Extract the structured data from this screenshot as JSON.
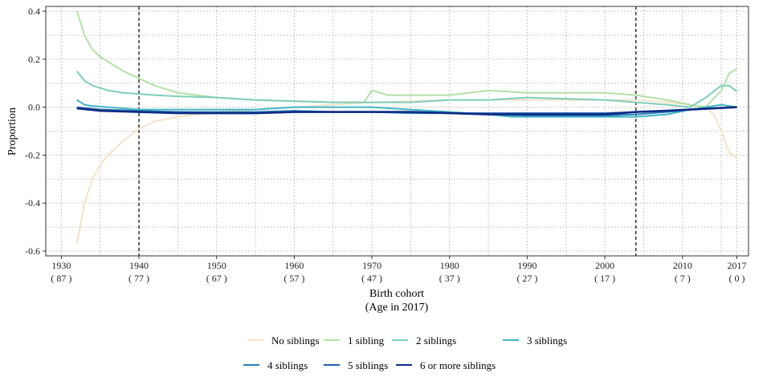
{
  "chart_data": {
    "type": "line",
    "xlabel": "Birth cohort",
    "xlabel2": "(Age in 2017)",
    "ylabel": "Proportion",
    "xlim": [
      1928,
      2018.5
    ],
    "ylim": [
      -0.62,
      0.42
    ],
    "x_ticks": [
      {
        "year": 1930,
        "label": "1930",
        "age": "( 87 )"
      },
      {
        "year": 1940,
        "label": "1940",
        "age": "( 77 )"
      },
      {
        "year": 1950,
        "label": "1950",
        "age": "( 67 )"
      },
      {
        "year": 1960,
        "label": "1960",
        "age": "( 57 )"
      },
      {
        "year": 1970,
        "label": "1970",
        "age": "( 47 )"
      },
      {
        "year": 1980,
        "label": "1980",
        "age": "( 37 )"
      },
      {
        "year": 1990,
        "label": "1990",
        "age": "( 27 )"
      },
      {
        "year": 2000,
        "label": "2000",
        "age": "( 17 )"
      },
      {
        "year": 2010,
        "label": "2010",
        "age": "( 7 )"
      },
      {
        "year": 2017,
        "label": "2017",
        "age": "( 0 )"
      }
    ],
    "y_ticks": [
      -0.6,
      -0.4,
      -0.2,
      0.0,
      0.2,
      0.4
    ],
    "y_tick_labels": [
      "-0.6",
      "-0.4",
      "-0.2",
      "0.0",
      "0.2",
      "0.4"
    ],
    "vlines": [
      1940,
      2004
    ],
    "grid": true,
    "legend_position": "bottom",
    "series": [
      {
        "name": "No siblings",
        "color": "#f3e3c8",
        "x": [
          1932,
          1933,
          1934,
          1935,
          1936,
          1938,
          1940,
          1942,
          1945,
          1950,
          1955,
          1960,
          1965,
          1970,
          1975,
          1980,
          1985,
          1990,
          1995,
          2000,
          2004,
          2008,
          2011,
          2013,
          2014,
          2015,
          2016,
          2017
        ],
        "y": [
          -0.57,
          -0.4,
          -0.3,
          -0.24,
          -0.2,
          -0.14,
          -0.09,
          -0.06,
          -0.04,
          -0.02,
          -0.01,
          0.0,
          0.01,
          0.02,
          0.025,
          0.03,
          0.03,
          0.03,
          0.03,
          0.03,
          0.03,
          0.02,
          0.01,
          0.0,
          -0.03,
          -0.1,
          -0.19,
          -0.21
        ]
      },
      {
        "name": "1 sibling",
        "color": "#b3e0a6",
        "x": [
          1932,
          1933,
          1934,
          1935,
          1936,
          1938,
          1940,
          1942,
          1945,
          1950,
          1955,
          1960,
          1965,
          1969,
          1970,
          1972,
          1975,
          1980,
          1985,
          1990,
          1995,
          2000,
          2004,
          2008,
          2011,
          2013,
          2015,
          2016,
          2017
        ],
        "y": [
          0.4,
          0.3,
          0.24,
          0.21,
          0.19,
          0.15,
          0.12,
          0.09,
          0.06,
          0.04,
          0.03,
          0.025,
          0.02,
          0.02,
          0.07,
          0.05,
          0.05,
          0.05,
          0.07,
          0.06,
          0.06,
          0.06,
          0.05,
          0.03,
          0.01,
          0.0,
          0.07,
          0.14,
          0.16
        ]
      },
      {
        "name": "2 sibling",
        "color": "#7fcdbb",
        "x": [
          1932,
          1933,
          1934,
          1936,
          1938,
          1940,
          1942,
          1945,
          1950,
          1955,
          1960,
          1965,
          1970,
          1975,
          1980,
          1985,
          1990,
          1995,
          2000,
          2004,
          2008,
          2011,
          2013,
          2015,
          2016,
          2017
        ],
        "y": [
          0.15,
          0.11,
          0.09,
          0.07,
          0.06,
          0.055,
          0.05,
          0.045,
          0.04,
          0.03,
          0.025,
          0.02,
          0.02,
          0.02,
          0.03,
          0.03,
          0.04,
          0.035,
          0.03,
          0.02,
          0.01,
          0.0,
          0.04,
          0.09,
          0.09,
          0.065
        ]
      },
      {
        "name": "3 siblings",
        "color": "#41b6c4",
        "x": [
          1932,
          1933,
          1934,
          1936,
          1940,
          1945,
          1950,
          1955,
          1960,
          1965,
          1970,
          1975,
          1980,
          1985,
          1988,
          1990,
          1995,
          2000,
          2004,
          2008,
          2011,
          2013,
          2015,
          2017
        ],
        "y": [
          0.03,
          0.01,
          0.005,
          0.0,
          -0.01,
          -0.01,
          -0.01,
          -0.01,
          0.0,
          0.0,
          0.0,
          -0.01,
          -0.02,
          -0.03,
          -0.04,
          -0.04,
          -0.04,
          -0.04,
          -0.04,
          -0.03,
          -0.01,
          0.0,
          0.01,
          0.0
        ]
      },
      {
        "name": "4 siblings",
        "color": "#2c7fb8",
        "x": [
          1932,
          1935,
          1940,
          1945,
          1950,
          1955,
          1960,
          1965,
          1970,
          1975,
          1980,
          1985,
          1990,
          1995,
          2000,
          2004,
          2008,
          2011,
          2014,
          2017
        ],
        "y": [
          0.0,
          -0.01,
          -0.015,
          -0.02,
          -0.02,
          -0.02,
          -0.015,
          -0.02,
          -0.02,
          -0.025,
          -0.025,
          -0.03,
          -0.035,
          -0.035,
          -0.035,
          -0.03,
          -0.02,
          -0.01,
          -0.005,
          0.0
        ]
      },
      {
        "name": "5 siblings",
        "color": "#225ea8",
        "x": [
          1932,
          1935,
          1940,
          1945,
          1950,
          1955,
          1960,
          1965,
          1970,
          1975,
          1980,
          1985,
          1990,
          1995,
          2000,
          2004,
          2008,
          2011,
          2014,
          2017
        ],
        "y": [
          -0.005,
          -0.01,
          -0.02,
          -0.02,
          -0.025,
          -0.025,
          -0.02,
          -0.02,
          -0.02,
          -0.02,
          -0.025,
          -0.025,
          -0.025,
          -0.025,
          -0.025,
          -0.02,
          -0.015,
          -0.01,
          -0.005,
          0.0
        ]
      },
      {
        "name": "6 or more siblings",
        "color": "#0c2c84",
        "x": [
          1932,
          1935,
          1940,
          1945,
          1950,
          1955,
          1960,
          1965,
          1970,
          1975,
          1980,
          1985,
          1990,
          1995,
          2000,
          2004,
          2008,
          2011,
          2014,
          2017
        ],
        "y": [
          -0.005,
          -0.015,
          -0.02,
          -0.025,
          -0.025,
          -0.025,
          -0.02,
          -0.02,
          -0.02,
          -0.02,
          -0.025,
          -0.03,
          -0.03,
          -0.03,
          -0.03,
          -0.02,
          -0.015,
          -0.01,
          -0.005,
          0.0
        ]
      }
    ]
  },
  "legend": {
    "items": [
      "No siblings",
      "1 sibling",
      "2 siblings",
      "3 siblings",
      "4 siblings",
      "5 siblings",
      "6 or more siblings"
    ]
  }
}
